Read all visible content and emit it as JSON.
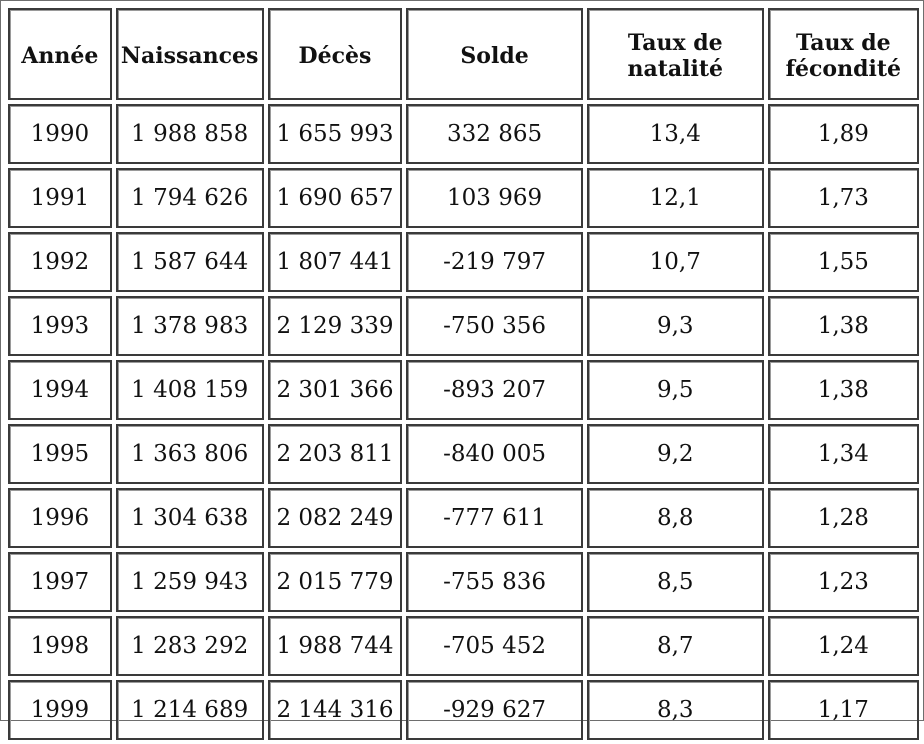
{
  "table": {
    "headers": [
      "Année",
      "Naissances",
      "Décès",
      "Solde",
      "Taux de natalité",
      "Taux de fécondité"
    ],
    "header_lines": [
      [
        "Année"
      ],
      [
        "Naissances"
      ],
      [
        "Décès"
      ],
      [
        "Solde"
      ],
      [
        "Taux de",
        "natalité"
      ],
      [
        "Taux de",
        "fécondité"
      ]
    ],
    "rows": [
      [
        "1990",
        "1 988 858",
        "1 655 993",
        "332 865",
        "13,4",
        "1,89"
      ],
      [
        "1991",
        "1 794 626",
        "1 690 657",
        "103 969",
        "12,1",
        "1,73"
      ],
      [
        "1992",
        "1 587 644",
        "1 807 441",
        "-219 797",
        "10,7",
        "1,55"
      ],
      [
        "1993",
        "1 378 983",
        "2 129 339",
        "-750 356",
        "9,3",
        "1,38"
      ],
      [
        "1994",
        "1 408 159",
        "2 301 366",
        "-893 207",
        "9,5",
        "1,38"
      ],
      [
        "1995",
        "1 363 806",
        "2 203 811",
        "-840 005",
        "9,2",
        "1,34"
      ],
      [
        "1996",
        "1 304 638",
        "2 082 249",
        "-777 611",
        "8,8",
        "1,28"
      ],
      [
        "1997",
        "1 259 943",
        "2 015 779",
        "-755 836",
        "8,5",
        "1,23"
      ],
      [
        "1998",
        "1 283 292",
        "1 988 744",
        "-705 452",
        "8,7",
        "1,24"
      ],
      [
        "1999",
        "1 214 689",
        "2 144 316",
        "-929 627",
        "8,3",
        "1,17"
      ]
    ]
  }
}
